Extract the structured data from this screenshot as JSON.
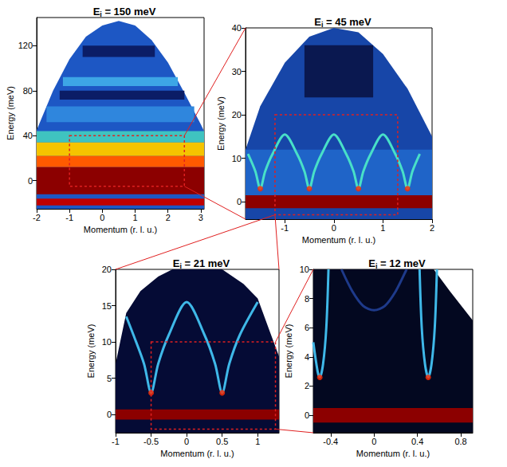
{
  "chart_data": [
    {
      "type": "line",
      "title": "Ei = 150 meV",
      "x_label": "Momentum (r. l. u.)",
      "y_label": "Energy (meV)",
      "xlim": [
        -2,
        3.1
      ],
      "ylim": [
        -25,
        145
      ],
      "xticks": [
        -2,
        -1,
        0,
        1,
        2,
        3
      ],
      "yticks": [
        0,
        40,
        80,
        120
      ],
      "grid": false,
      "series": [
        {
          "type": "area",
          "color": "#1d57c4",
          "values": [
            [
              -2,
              45
            ],
            [
              -1.5,
              80
            ],
            [
              -1,
              108
            ],
            [
              -0.5,
              128
            ],
            [
              0,
              138
            ],
            [
              0.5,
              142
            ],
            [
              1,
              138
            ],
            [
              1.5,
              125
            ],
            [
              2,
              105
            ],
            [
              2.5,
              78
            ],
            [
              3,
              50
            ],
            [
              3.1,
              44
            ]
          ]
        },
        {
          "type": "band",
          "color": "#0b1d66",
          "x": [
            -0.6,
            1.6
          ],
          "y": [
            110,
            120
          ]
        },
        {
          "type": "band",
          "color": "#3da6e6",
          "x": [
            -1.2,
            2.3
          ],
          "y": [
            84,
            92
          ]
        },
        {
          "type": "band",
          "color": "#0b1d66",
          "x": [
            -1.3,
            2.5
          ],
          "y": [
            72,
            80
          ]
        },
        {
          "type": "band",
          "color": "#2f86dd",
          "x": [
            -1.7,
            2.8
          ],
          "y": [
            52,
            66
          ]
        },
        {
          "type": "band",
          "color": "#3fc3c0",
          "x": [
            -2,
            3.1
          ],
          "y": [
            34,
            44
          ]
        },
        {
          "type": "band",
          "color": "#f5c400",
          "x": [
            -2,
            3.1
          ],
          "y": [
            22,
            34
          ]
        },
        {
          "type": "band",
          "color": "#ff5a00",
          "x": [
            -2,
            3.1
          ],
          "y": [
            12,
            22
          ]
        },
        {
          "type": "band",
          "color": "#8c0000",
          "x": [
            -2,
            3.1
          ],
          "y": [
            -12,
            12
          ]
        },
        {
          "type": "band",
          "color": "#c00000",
          "x": [
            -2,
            3.1
          ],
          "y": [
            -22,
            -16
          ]
        }
      ],
      "zoom_box": {
        "x": [
          -1,
          2.5
        ],
        "y": [
          -5,
          40
        ]
      }
    },
    {
      "type": "line",
      "title": "Ei = 45 meV",
      "x_label": "Momentum (r. l. u.)",
      "y_label": "Energy (meV)",
      "xlim": [
        -1.8,
        2
      ],
      "ylim": [
        -4,
        40
      ],
      "xticks": [
        -1,
        0,
        1,
        2
      ],
      "yticks": [
        0,
        10,
        20,
        30,
        40
      ],
      "grid": false,
      "series": [
        {
          "type": "area",
          "color": "#1746a8",
          "values": [
            [
              -1.8,
              12
            ],
            [
              -1.5,
              22
            ],
            [
              -1,
              32
            ],
            [
              -0.5,
              38
            ],
            [
              0,
              40
            ],
            [
              0.5,
              39
            ],
            [
              1,
              34
            ],
            [
              1.5,
              26
            ],
            [
              2,
              15
            ]
          ]
        },
        {
          "type": "band",
          "color": "#0a1850",
          "x": [
            -0.6,
            0.8
          ],
          "y": [
            24,
            36
          ]
        },
        {
          "type": "band",
          "color": "#1f64c8",
          "x": [
            -1.8,
            2
          ],
          "y": [
            1.5,
            12
          ]
        },
        {
          "type": "band",
          "color": "#8c0000",
          "x": [
            -1.8,
            2
          ],
          "y": [
            -1.5,
            1.5
          ]
        },
        {
          "type": "line",
          "color": "#48e0c8",
          "values": [
            [
              -1.75,
              11
            ],
            [
              -1.6,
              7
            ],
            [
              -1.5,
              3
            ],
            [
              -1.4,
              7
            ],
            [
              -1.25,
              11
            ],
            [
              -1,
              15.5
            ],
            [
              -0.75,
              11
            ],
            [
              -0.6,
              7
            ],
            [
              -0.5,
              3
            ],
            [
              -0.4,
              7
            ],
            [
              -0.25,
              11
            ],
            [
              0,
              15.5
            ],
            [
              0.25,
              11
            ],
            [
              0.4,
              7
            ],
            [
              0.5,
              3
            ],
            [
              0.6,
              7
            ],
            [
              0.75,
              11
            ],
            [
              1,
              15.5
            ],
            [
              1.25,
              11
            ],
            [
              1.4,
              7
            ],
            [
              1.5,
              3
            ],
            [
              1.6,
              7
            ],
            [
              1.75,
              11
            ]
          ]
        },
        {
          "type": "scatter",
          "color": "#ff2a00",
          "values": [
            [
              -1.5,
              3
            ],
            [
              -0.5,
              3
            ],
            [
              0.5,
              3
            ],
            [
              1.5,
              3
            ]
          ]
        }
      ],
      "zoom_box": {
        "x": [
          -1.2,
          1.3
        ],
        "y": [
          -3,
          20
        ]
      }
    },
    {
      "type": "line",
      "title": "Ei = 21 meV",
      "x_label": "Momentum (r. l. u.)",
      "y_label": "Energy (meV)",
      "xlim": [
        -1,
        1.3
      ],
      "ylim": [
        -2.5,
        20
      ],
      "xticks": [
        -1,
        -0.5,
        0,
        0.5,
        1
      ],
      "yticks": [
        0,
        5,
        10,
        15,
        20
      ],
      "grid": false,
      "series": [
        {
          "type": "area",
          "color": "#050b35",
          "values": [
            [
              -1,
              7
            ],
            [
              -0.85,
              14
            ],
            [
              -0.65,
              17
            ],
            [
              -0.4,
              19
            ],
            [
              -0.2,
              20
            ],
            [
              0.5,
              20
            ],
            [
              0.8,
              18
            ],
            [
              1,
              16
            ],
            [
              1.15,
              12
            ],
            [
              1.3,
              8
            ]
          ]
        },
        {
          "type": "band",
          "color": "#8c0000",
          "x": [
            -1,
            1.3
          ],
          "y": [
            -0.7,
            0.7
          ]
        },
        {
          "type": "line",
          "color": "#3fb8e8",
          "values": [
            [
              -0.85,
              13.5
            ],
            [
              -0.75,
              11
            ],
            [
              -0.6,
              7
            ],
            [
              -0.5,
              3
            ],
            [
              -0.4,
              7
            ],
            [
              -0.25,
              11
            ],
            [
              0,
              15.5
            ],
            [
              0.25,
              11
            ],
            [
              0.4,
              7
            ],
            [
              0.5,
              3
            ],
            [
              0.6,
              7
            ],
            [
              0.75,
              11
            ],
            [
              1,
              15.5
            ]
          ]
        },
        {
          "type": "scatter",
          "color": "#ff2a00",
          "values": [
            [
              -0.5,
              3
            ],
            [
              0.5,
              3
            ]
          ]
        }
      ],
      "zoom_box": {
        "x": [
          -0.5,
          1.25
        ],
        "y": [
          -2,
          10
        ]
      }
    },
    {
      "type": "line",
      "title": "Ei = 12 meV",
      "x_label": "Momentum (r. l. u.)",
      "y_label": "Energy (meV)",
      "xlim": [
        -0.56,
        0.91
      ],
      "ylim": [
        -1.2,
        10
      ],
      "xticks": [
        -0.4,
        0,
        0.4,
        0.8
      ],
      "yticks": [
        0,
        2,
        4,
        6,
        8,
        10
      ],
      "grid": false,
      "series": [
        {
          "type": "area",
          "color": "#030820",
          "values": [
            [
              -0.56,
              10
            ],
            [
              0.55,
              10
            ],
            [
              0.7,
              8.5
            ],
            [
              0.91,
              6.5
            ]
          ]
        },
        {
          "type": "band",
          "color": "#8c0000",
          "x": [
            -0.56,
            0.91
          ],
          "y": [
            -0.5,
            0.5
          ]
        },
        {
          "type": "line",
          "color": "#1e3a8a",
          "values": [
            [
              -0.3,
              10
            ],
            [
              -0.2,
              8.5
            ],
            [
              -0.1,
              7.5
            ],
            [
              0,
              7.2
            ],
            [
              0.1,
              7.5
            ],
            [
              0.2,
              8.5
            ],
            [
              0.3,
              10
            ]
          ]
        },
        {
          "type": "line",
          "color": "#3fb8e8",
          "values": [
            [
              -0.56,
              5
            ],
            [
              -0.52,
              3
            ],
            [
              -0.5,
              2.6
            ],
            [
              -0.47,
              3.5
            ],
            [
              -0.44,
              6
            ],
            [
              -0.42,
              10
            ]
          ]
        },
        {
          "type": "line",
          "color": "#3fb8e8",
          "values": [
            [
              0.42,
              10
            ],
            [
              0.44,
              6
            ],
            [
              0.47,
              3.5
            ],
            [
              0.5,
              2.6
            ],
            [
              0.53,
              3.5
            ],
            [
              0.56,
              6
            ],
            [
              0.58,
              10
            ]
          ]
        },
        {
          "type": "scatter",
          "color": "#ff2a00",
          "values": [
            [
              -0.5,
              2.6
            ],
            [
              0.5,
              2.6
            ]
          ]
        }
      ]
    }
  ]
}
